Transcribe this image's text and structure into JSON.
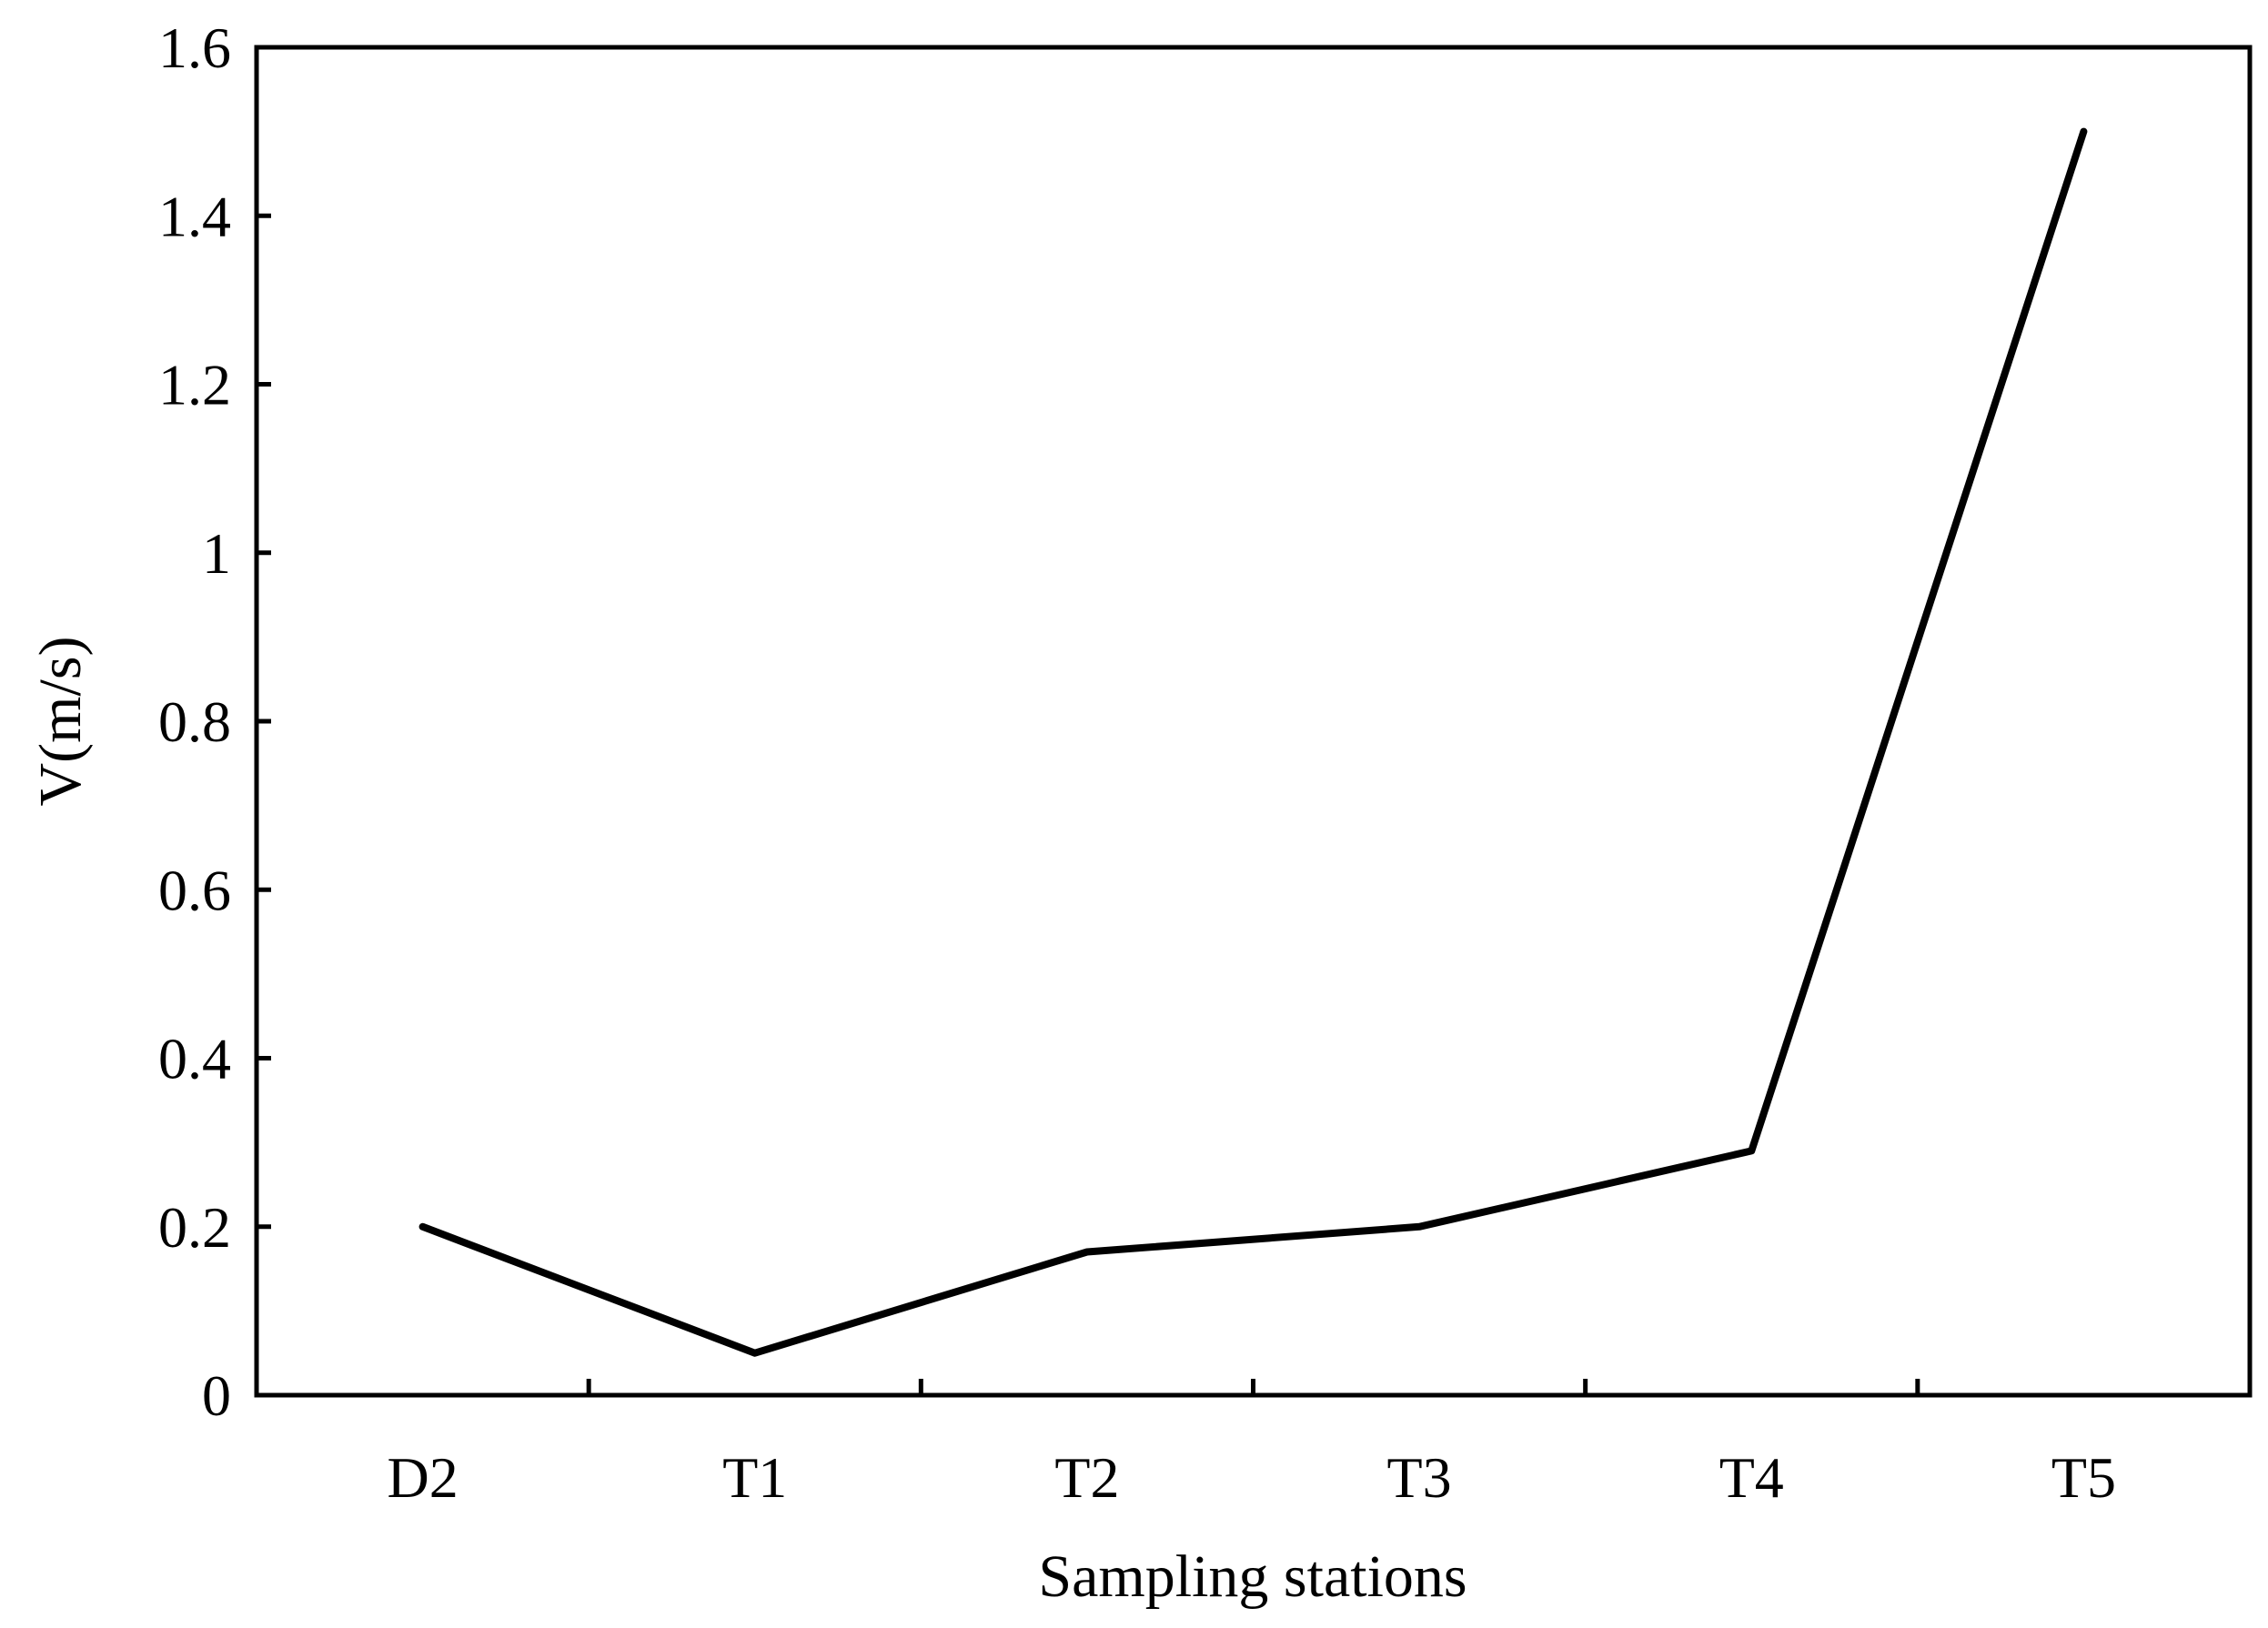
{
  "chart_data": {
    "type": "line",
    "title": "",
    "xlabel": "Sampling stations",
    "ylabel": "V(m/s)",
    "categories": [
      "D2",
      "T1",
      "T2",
      "T3",
      "T4",
      "T5"
    ],
    "series": [
      {
        "values": [
          0.2,
          0.05,
          0.17,
          0.2,
          0.29,
          1.5
        ]
      }
    ],
    "ylim": [
      0,
      1.6
    ],
    "yticks": [
      "0",
      "0.2",
      "0.4",
      "0.6",
      "0.8",
      "1",
      "1.2",
      "1.4",
      "1.6"
    ],
    "grid": false,
    "legend": "none",
    "line_color": "#000000"
  }
}
